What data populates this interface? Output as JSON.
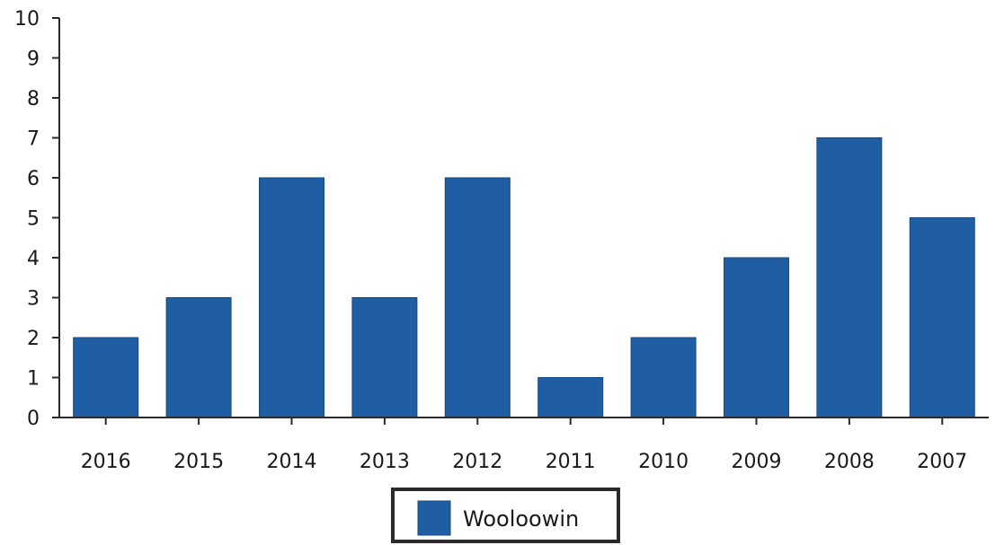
{
  "chart_data": {
    "type": "bar",
    "categories": [
      "2016",
      "2015",
      "2014",
      "2013",
      "2012",
      "2011",
      "2010",
      "2009",
      "2008",
      "2007"
    ],
    "series": [
      {
        "name": "Wooloowin",
        "values": [
          2,
          3,
          6,
          3,
          6,
          1,
          2,
          4,
          7,
          5
        ],
        "color": "#1f5ea3"
      }
    ],
    "y_ticks": [
      "0",
      "1",
      "2",
      "3",
      "4",
      "5",
      "6",
      "7",
      "8",
      "9",
      "10"
    ],
    "ylim": [
      0,
      10
    ],
    "title": "",
    "xlabel": "",
    "ylabel": "",
    "grid": false,
    "legend_position": "bottom-center"
  },
  "colors": {
    "bar": "#1f5ea3",
    "bar_edge": "#17497f",
    "axis": "#2a2a2a",
    "text": "#1a1a1a",
    "legend_border": "#2a2a2a"
  }
}
